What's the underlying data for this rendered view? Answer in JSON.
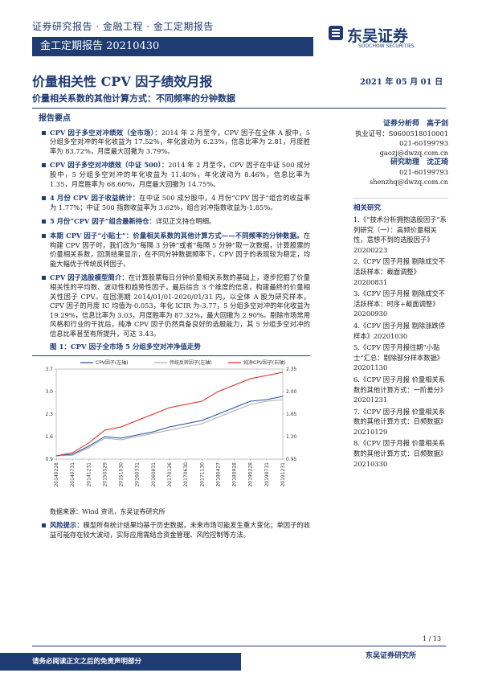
{
  "header": {
    "breadcrumb": "证券研究报告 · 金融工程 · 金工定期报告",
    "banner": "金工定期报告 20210430",
    "logo": "东吴证券",
    "logo_en": "SOOCHOW SECURITIES"
  },
  "title": "价量相关性 CPV 因子绩效月报",
  "date": "2021 年 05 月 01 日",
  "subtitle": "价量相关系数的其他计算方式：不同频率的分钟数据",
  "summary": {
    "heading": "报告要点",
    "items": [
      {
        "lead": "CPV 因子多空对冲绩效（全市场）：",
        "text": "2014 年 2 月至今，CPV 因子在全体 A 股中，5 分组多空对冲的年化收益为 17.52%，年化波动为 6.23%，信息比率为 2.81，月度胜率为 83.72%，月度最大回撤为 3.79%。"
      },
      {
        "lead": "CPV 因子多空对冲绩效（中证 500）：",
        "text": "2014 年 2 月至今，CPV 因子在中证 500 成分股中，5 分组多空对冲的年化收益为 11.40%，年化波动为 8.46%，信息比率为 1.35，月度胜率为 68.60%，月度最大回撤为 14.75%。"
      },
      {
        "lead": "4 月份 CPV 因子收益统计：",
        "text": "在中证 500 成分股中，4 月份“CPV 因子”组合的收益率为 1.77%；中证 500 指数收益率为 3.62%，组合对冲指数收益为-1.85%。"
      },
      {
        "lead": "5 月份“CPV 因子”组合最新持仓：",
        "text": "详见正文持仓明细。"
      },
      {
        "lead": "本期 CPV 因子“小贴士”：价量相关系数的其他计算方式——不同频率的分钟数据。",
        "text": "在构建 CPV 因子时，我们改为“每隔 3 分钟”或者“每隔 5 分钟”取一次数据，计算股票的价量相关系数，回测结果显示，在不同分钟数据频率下，CPV 因子的表现较为稳定，均能大幅优于传统反转因子。"
      },
      {
        "lead": "CPV 因子选股模型简介：",
        "text": "在计算股票每日分钟价量相关系数的基础上，逐步挖掘了价量相关性的平均数、波动性和趋势性因子，最后综合 3 个维度的信息，构建最终的价量相关性因子 CPV。在回测期 2014/01/01-2020/01/31 内，以全体 A 股为研究样本，CPV 因子的月度 IC 均值为-0.053，年化 ICIR 为-3.77，5 分组多空对冲的年化收益为 19.29%，信息比率为 3.03，月度胜率为 87.32%，最大回撤为 2.90%。剔除市场常用风格和行业的干扰后，纯净 CPV 因子仍然具备良好的选股能力，其 5 分组多空对冲的信息比率甚至有所提升，可达 3.43。"
      }
    ]
  },
  "figure": {
    "caption": "图 1：CPV 因子全市场 5 分组多空对冲净值走势",
    "source": "数据来源：Wind 资讯，东吴证券研究所",
    "chart_data": {
      "type": "line",
      "categories": [
        "20140228",
        "20140731",
        "20141231",
        "20150529",
        "20151030",
        "20160331",
        "20160831",
        "20170126",
        "20170630",
        "20171130",
        "20180427",
        "20180928",
        "20190228",
        "20190731",
        "20191231"
      ],
      "series": [
        {
          "name": "CPV因子(左轴)",
          "color": "#1f4e9c",
          "values": [
            1.0,
            1.05,
            1.3,
            1.6,
            1.55,
            1.65,
            1.75,
            1.9,
            2.0,
            2.1,
            2.3,
            2.5,
            2.7,
            2.75,
            2.85
          ]
        },
        {
          "name": "传统反转因子(左轴)",
          "color": "#aaaaaa",
          "values": [
            1.0,
            1.02,
            1.25,
            1.55,
            1.5,
            1.6,
            1.7,
            1.8,
            1.9,
            2.0,
            2.2,
            2.4,
            2.6,
            2.7,
            2.75
          ]
        },
        {
          "name": "纯净CPV因子(右轴)",
          "color": "#e0241c",
          "axis": "y2",
          "values": [
            1.0,
            1.05,
            1.2,
            1.4,
            1.45,
            1.55,
            1.65,
            1.75,
            1.8,
            1.85,
            2.0,
            2.1,
            2.2,
            2.25,
            2.3
          ]
        }
      ],
      "ylim": [
        0.9,
        3.7
      ],
      "yticks": [
        0.9,
        1.6,
        2.3,
        {
          "value": 3.0,
          "label": "3.0"
        },
        3.7
      ],
      "y2lim": [
        0.95,
        2.35
      ],
      "y2ticks": [
        0.95,
        {
          "value": 1.3,
          "label": "1.30"
        },
        1.65,
        {
          "value": 2.0,
          "label": "2.00"
        },
        2.35
      ],
      "legend": "top"
    }
  },
  "risk": {
    "lead": "风险提示：",
    "text": "模型所有统计结果均基于历史数据，未来市场可能发生重大变化；单因子的收益可能存在较大波动，实际应用需结合资金管理、风险控制等方法。"
  },
  "analysts": [
    "证券分析师　高子剑",
    "执业证号：S0600518010001",
    "021-60199793",
    "gaozj@dwzq.com.cn",
    "研究助理　沈芷琦",
    "021-60199793",
    "shenzhq@dwzq.com.cn"
  ],
  "related": {
    "heading": "相关研究",
    "items": [
      "1.《“技术分析拥抱选股因子”系列研究（一）：高频价量相关性，意想不到的选股因子》20200223",
      "2.《CPV 因子月报 剔除成交不活跃样本：截面调整》20200831",
      "3.《CPV 因子月报 剔除成交不活跃样本：时序+截面调整》20200930",
      "4.《CPV 因子月报 剔除涨跌停样本》20201030",
      "5.《CPV 因子月报往期“小贴士”汇总：剔除部分样本数据》20201130",
      "6.《CPV 因子月报 价量相关系数的其他计算方式：一阶差分》20201231",
      "7.《CPV 因子月报 价量相关系数的其他计算方式：日频数据》20210129",
      "8.《CPV 因子月报 价量相关系数的其他计算方式：日频数据》20210330"
    ]
  },
  "footer": {
    "page": "1 / 13",
    "org": "东吴证券研究所",
    "disclaimer": "请务必阅读正文之后的免责声明部分"
  }
}
